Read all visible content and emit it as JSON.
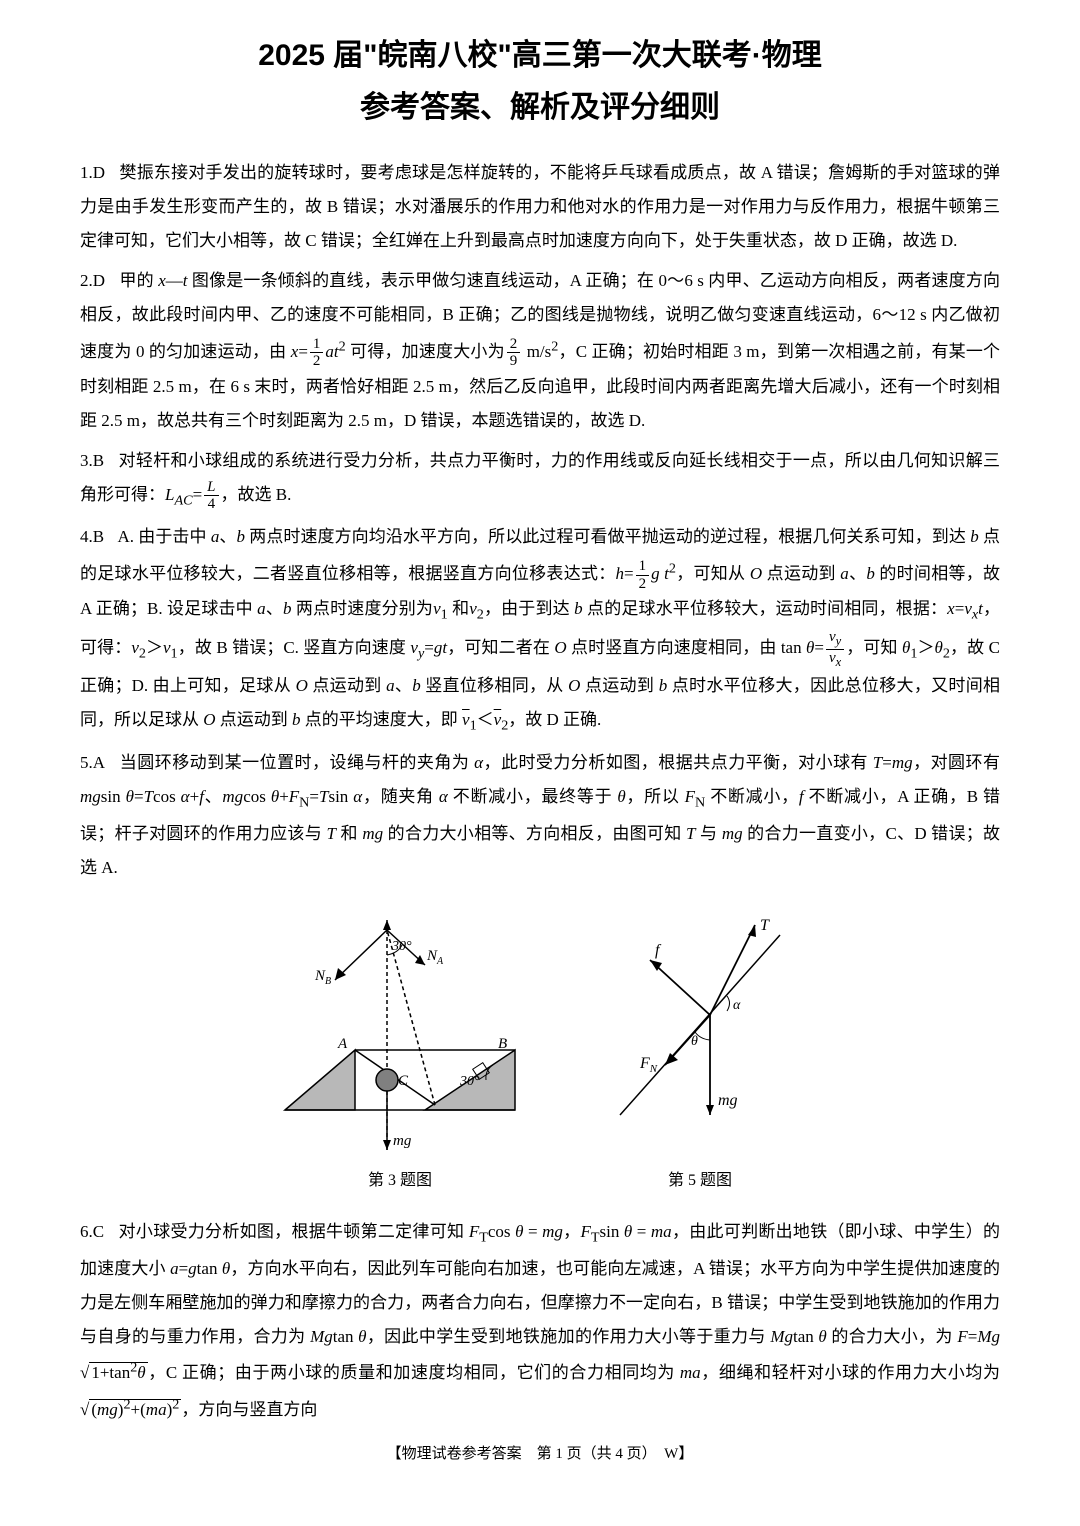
{
  "title": {
    "main": "2025 届\"皖南八校\"高三第一次大联考·物理",
    "sub": "参考答案、解析及评分细则"
  },
  "questions": [
    {
      "num": "1.",
      "ans": "D",
      "body": "樊振东接对手发出的旋转球时，要考虑球是怎样旋转的，不能将乒乓球看成质点，故 A 错误；詹姆斯的手对篮球的弹力是由手发生形变而产生的，故 B 错误；水对潘展乐的作用力和他对水的作用力是一对作用力与反作用力，根据牛顿第三定律可知，它们大小相等，故 C 错误；全红婵在上升到最高点时加速度方向向下，处于失重状态，故 D 正确，故选 D."
    },
    {
      "num": "2.",
      "ans": "D",
      "body_html": "甲的 <i>x</i>—<i>t</i> 图像是一条倾斜的直线，表示甲做匀速直线运动，A 正确；在 0～6 s 内甲、乙运动方向相反，两者速度方向相反，故此段时间内甲、乙的速度不可能相同，B 正确；乙的图线是抛物线，说明乙做匀变速直线运动，6～12 s 内乙做初速度为 0 的匀加速运动，由 <i>x</i>=<span class='frac'><span class='num'>1</span><span class='den'>2</span></span><i>at</i><sup>2</sup> 可得，加速度大小为<span class='frac'><span class='num'>2</span><span class='den'>9</span></span> m/s<sup>2</sup>，C 正确；初始时相距 3 m，到第一次相遇之前，有某一个时刻相距 2.5 m，在 6 s 末时，两者恰好相距 2.5 m，然后乙反向追甲，此段时间内两者距离先增大后减小，还有一个时刻相距 2.5 m，故总共有三个时刻距离为 2.5 m，D 错误，本题选错误的，故选 D."
    },
    {
      "num": "3.",
      "ans": "B",
      "body_html": "对轻杆和小球组成的系统进行受力分析，共点力平衡时，力的作用线或反向延长线相交于一点，所以由几何知识解三角形可得：<i>L<sub>AC</sub></i>=<span class='frac'><span class='num'><i>L</i></span><span class='den'>4</span></span>，故选 B."
    },
    {
      "num": "4.",
      "ans": "B",
      "body_html": "A. 由于击中 <i>a</i>、<i>b</i> 两点时速度方向均沿水平方向，所以此过程可看做平抛运动的逆过程，根据几何关系可知，到达 <i>b</i> 点的足球水平位移较大，二者竖直位移相等，根据竖直方向位移表达式：<i>h</i>=<span class='frac'><span class='num'>1</span><span class='den'>2</span></span><i>g t</i><sup>2</sup>，可知从 <i>O</i> 点运动到 <i>a</i>、<i>b</i> 的时间相等，故 A 正确；B. 设足球击中 <i>a</i>、<i>b</i> 两点时速度分别为<i>v</i><sub>1</sub> 和<i>v</i><sub>2</sub>，由于到达 <i>b</i> 点的足球水平位移较大，运动时间相同，根据：<i>x</i>=<i>v<sub>x</sub>t</i>，可得：<i>v</i><sub>2</sub>＞<i>v</i><sub>1</sub>，故 B 错误；C. 竖直方向速度 <i>v<sub>y</sub></i>=<i>gt</i>，可知二者在 <i>O</i> 点时竖直方向速度相同，由 tan <i>θ</i>=<span class='frac'><span class='num'><i>v<sub>y</sub></i></span><span class='den'><i>v<sub>x</sub></i></span></span>，可知 <i>θ</i><sub>1</sub>＞<i>θ</i><sub>2</sub>，故 C 正确；D. 由上可知，足球从 <i>O</i> 点运动到 <i>a</i>、<i>b</i> 竖直位移相同，从 <i>O</i> 点运动到 <i>b</i> 点时水平位移大，因此总位移大，又时间相同，所以足球从 <i>O</i> 点运动到 <i>b</i> 点的平均速度大，即 <span style='text-decoration:overline'><i>v</i></span><sub>1</sub>＜<span style='text-decoration:overline'><i>v</i></span><sub>2</sub>，故 D 正确."
    },
    {
      "num": "5.",
      "ans": "A",
      "body_html": "当圆环移动到某一位置时，设绳与杆的夹角为 <i>α</i>，此时受力分析如图，根据共点力平衡，对小球有 <i>T</i>=<i>mg</i>，对圆环有 <i>mg</i>sin <i>θ</i>=<i>T</i>cos <i>α</i>+<i>f</i>、<i>mg</i>cos <i>θ</i>+<i>F</i><sub>N</sub>=<i>T</i>sin <i>α</i>，随夹角 <i>α</i> 不断减小，最终等于 <i>θ</i>，所以 <i>F</i><sub>N</sub> 不断减小，<i>f</i> 不断减小，A 正确，B 错误；杆子对圆环的作用力应该与 <i>T</i> 和 <i>mg</i> 的合力大小相等、方向相反，由图可知 <i>T</i> 与 <i>mg</i> 的合力一直变小，C、D 错误；故选 A."
    },
    {
      "num": "6.",
      "ans": "C",
      "body_html": "对小球受力分析如图，根据牛顿第二定律可知 <i>F</i><sub>T</sub>cos <i>θ</i> = <i>mg</i>，<i>F</i><sub>T</sub>sin <i>θ</i> = <i>ma</i>，由此可判断出地铁（即小球、中学生）的加速度大小 <i>a</i>=<i>g</i>tan <i>θ</i>，方向水平向右，因此列车可能向右加速，也可能向左减速，A 错误；水平方向为中学生提供加速度的力是左侧车厢壁施加的弹力和摩擦力的合力，两者合力向右，但摩擦力不一定向右，B 错误；中学生受到地铁施加的作用力与自身的与重力作用，合力为 <i>Mg</i>tan <i>θ</i>，因此中学生受到地铁施加的作用力大小等于重力与 <i>Mg</i>tan <i>θ</i> 的合力大小，为 <i>F</i>=<i>Mg</i> √<span class='sqrt'>1+tan<sup>2</sup><i>θ</i></span>，C 正确；由于两小球的质量和加速度均相同，它们的合力相同均为 <i>ma</i>，细绳和轻杆对小球的作用力大小均为 √<span class='sqrt'>(<i>mg</i>)<sup>2</sup>+(<i>ma</i>)<sup>2</sup></span>，方向与竖直方向"
    }
  ],
  "figures": {
    "fig3": {
      "caption": "第 3 题图",
      "labels": {
        "NA": "N_A",
        "NB": "N_B",
        "A": "A",
        "B": "B",
        "C": "C",
        "mg": "mg",
        "ang1": "30°",
        "ang2": "30°"
      },
      "colors": {
        "line": "#000000",
        "shade": "#b8b8b8"
      }
    },
    "fig5": {
      "caption": "第 5 题图",
      "labels": {
        "f": "f",
        "T": "T",
        "FN": "F_N",
        "mg": "mg",
        "alpha": "α",
        "theta": "θ"
      },
      "colors": {
        "line": "#000000"
      }
    }
  },
  "footer": "【物理试卷参考答案　第 1 页（共 4 页）　W】"
}
